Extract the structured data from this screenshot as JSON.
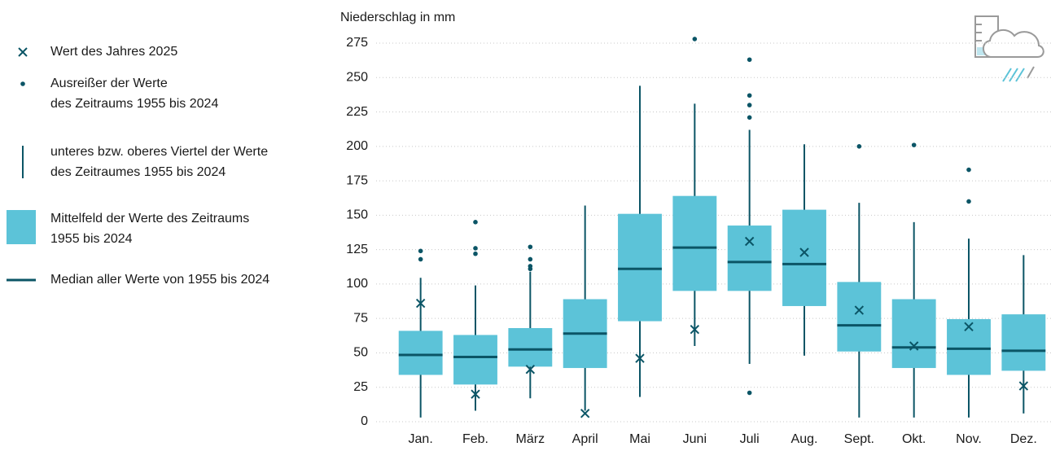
{
  "chart_data": {
    "type": "box",
    "y_label": "Niederschlag in mm",
    "categories": [
      "Jan.",
      "Feb.",
      "März",
      "April",
      "Mai",
      "Juni",
      "Juli",
      "Aug.",
      "Sept.",
      "Okt.",
      "Nov.",
      "Dez."
    ],
    "whisker_low": [
      3,
      8,
      17,
      8,
      18,
      55,
      42,
      48,
      3,
      3,
      3,
      6
    ],
    "q1": [
      34,
      27,
      40,
      39,
      73,
      95,
      95,
      84,
      51,
      39,
      34,
      37
    ],
    "median": [
      48.5,
      47,
      52.5,
      64,
      111,
      126.5,
      116,
      114.5,
      70,
      54,
      53,
      51.5
    ],
    "q3": [
      66,
      63,
      68,
      89,
      151,
      164,
      142.5,
      154,
      101.5,
      89,
      74.5,
      78
    ],
    "whisker_high": [
      104.5,
      99,
      109,
      157,
      244,
      231,
      212,
      201.5,
      159,
      145,
      133,
      121
    ],
    "values_2025": [
      86,
      20,
      38,
      6,
      46,
      67,
      131,
      123,
      81,
      55,
      69,
      26
    ],
    "outliers": [
      [
        118,
        124
      ],
      [
        122,
        126,
        145
      ],
      [
        111,
        113,
        118,
        127
      ],
      [],
      [],
      [
        278
      ],
      [
        21,
        221,
        230,
        237,
        263
      ],
      [],
      [
        200
      ],
      [
        201
      ],
      [
        160,
        183
      ],
      []
    ],
    "ylim": [
      0,
      275
    ],
    "yticks": [
      0,
      25,
      50,
      75,
      100,
      125,
      150,
      175,
      200,
      225,
      250,
      275
    ],
    "grid": true,
    "box_color": "#5cc3d8",
    "line_color": "#0b5566",
    "legend": [
      {
        "symbol": "cross",
        "lines": [
          "Wert des Jahres 2025"
        ]
      },
      {
        "symbol": "dot",
        "lines": [
          "Ausreißer der Werte",
          "des Zeitraums 1955 bis 2024"
        ]
      },
      {
        "symbol": "whisker",
        "lines": [
          "unteres bzw. oberes Viertel der Werte",
          "des Zeitraumes 1955 bis 2024"
        ]
      },
      {
        "symbol": "box",
        "lines": [
          "Mittelfeld der Werte des Zeitraums",
          "1955 bis 2024"
        ]
      },
      {
        "symbol": "median",
        "lines": [
          "Median aller Werte von 1955 bis 2024"
        ]
      }
    ]
  }
}
